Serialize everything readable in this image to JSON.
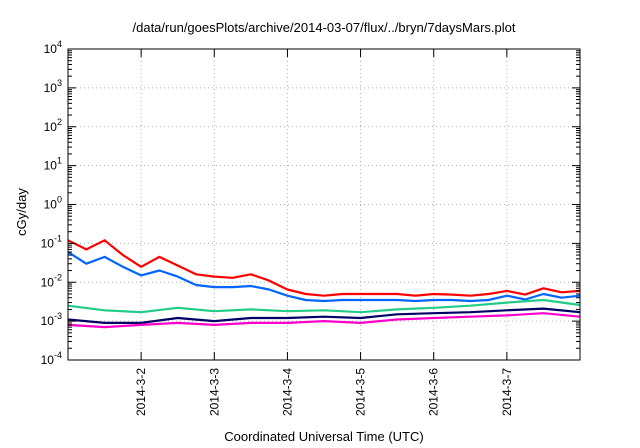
{
  "chart_data": {
    "type": "line",
    "title": "/data/run/goesPlots/archive/2014-03-07/flux/../bryn/7daysMars.plot",
    "xlabel": "Coordinated Universal Time (UTC)",
    "ylabel": "cGy/day",
    "y_scale": "log",
    "ylim": [
      0.0001,
      10000
    ],
    "y_ticks": [
      {
        "value": 0.0001,
        "base": "10",
        "exp": "-4"
      },
      {
        "value": 0.001,
        "base": "10",
        "exp": "-3"
      },
      {
        "value": 0.01,
        "base": "10",
        "exp": "-2"
      },
      {
        "value": 0.1,
        "base": "10",
        "exp": "-1"
      },
      {
        "value": 1,
        "base": "10",
        "exp": "0"
      },
      {
        "value": 10,
        "base": "10",
        "exp": "1"
      },
      {
        "value": 100,
        "base": "10",
        "exp": "2"
      },
      {
        "value": 1000,
        "base": "10",
        "exp": "3"
      },
      {
        "value": 10000,
        "base": "10",
        "exp": "4"
      }
    ],
    "xlim": [
      "2014-03-01 00:00",
      "2014-03-08 00:00"
    ],
    "x_ticks": [
      {
        "date": "2014-03-02 00:00",
        "label": "2014-3-2"
      },
      {
        "date": "2014-03-03 00:00",
        "label": "2014-3-3"
      },
      {
        "date": "2014-03-04 00:00",
        "label": "2014-3-4"
      },
      {
        "date": "2014-03-05 00:00",
        "label": "2014-3-5"
      },
      {
        "date": "2014-03-06 00:00",
        "label": "2014-3-6"
      },
      {
        "date": "2014-03-07 00:00",
        "label": "2014-3-7"
      }
    ],
    "grid": true,
    "series": [
      {
        "color": "#ff0000",
        "x": [
          "2014-03-01 00:00",
          "2014-03-01 06:00",
          "2014-03-01 12:00",
          "2014-03-01 18:00",
          "2014-03-02 00:00",
          "2014-03-02 06:00",
          "2014-03-02 12:00",
          "2014-03-02 18:00",
          "2014-03-03 00:00",
          "2014-03-03 06:00",
          "2014-03-03 12:00",
          "2014-03-03 18:00",
          "2014-03-04 00:00",
          "2014-03-04 06:00",
          "2014-03-04 12:00",
          "2014-03-04 18:00",
          "2014-03-05 00:00",
          "2014-03-05 06:00",
          "2014-03-05 12:00",
          "2014-03-05 18:00",
          "2014-03-06 00:00",
          "2014-03-06 06:00",
          "2014-03-06 12:00",
          "2014-03-06 18:00",
          "2014-03-07 00:00",
          "2014-03-07 06:00",
          "2014-03-07 12:00",
          "2014-03-07 18:00",
          "2014-03-08 00:00"
        ],
        "values": [
          0.12,
          0.07,
          0.12,
          0.05,
          0.025,
          0.045,
          0.027,
          0.016,
          0.014,
          0.013,
          0.016,
          0.011,
          0.0065,
          0.005,
          0.0045,
          0.005,
          0.005,
          0.005,
          0.005,
          0.0045,
          0.005,
          0.0048,
          0.0045,
          0.005,
          0.006,
          0.0048,
          0.007,
          0.0055,
          0.006
        ]
      },
      {
        "color": "#0066ff",
        "x": [
          "2014-03-01 00:00",
          "2014-03-01 06:00",
          "2014-03-01 12:00",
          "2014-03-01 18:00",
          "2014-03-02 00:00",
          "2014-03-02 06:00",
          "2014-03-02 12:00",
          "2014-03-02 18:00",
          "2014-03-03 00:00",
          "2014-03-03 06:00",
          "2014-03-03 12:00",
          "2014-03-03 18:00",
          "2014-03-04 00:00",
          "2014-03-04 06:00",
          "2014-03-04 12:00",
          "2014-03-04 18:00",
          "2014-03-05 00:00",
          "2014-03-05 06:00",
          "2014-03-05 12:00",
          "2014-03-05 18:00",
          "2014-03-06 00:00",
          "2014-03-06 06:00",
          "2014-03-06 12:00",
          "2014-03-06 18:00",
          "2014-03-07 00:00",
          "2014-03-07 06:00",
          "2014-03-07 12:00",
          "2014-03-07 18:00",
          "2014-03-08 00:00"
        ],
        "values": [
          0.06,
          0.03,
          0.045,
          0.025,
          0.015,
          0.02,
          0.014,
          0.0085,
          0.0075,
          0.0075,
          0.008,
          0.0065,
          0.0045,
          0.0035,
          0.0033,
          0.0035,
          0.0035,
          0.0035,
          0.0035,
          0.0033,
          0.0035,
          0.0035,
          0.0033,
          0.0035,
          0.0045,
          0.0036,
          0.005,
          0.004,
          0.0045
        ]
      },
      {
        "color": "#22cc88",
        "x": [
          "2014-03-01 00:00",
          "2014-03-01 12:00",
          "2014-03-02 00:00",
          "2014-03-02 12:00",
          "2014-03-03 00:00",
          "2014-03-03 12:00",
          "2014-03-04 00:00",
          "2014-03-04 12:00",
          "2014-03-05 00:00",
          "2014-03-05 12:00",
          "2014-03-06 00:00",
          "2014-03-06 12:00",
          "2014-03-07 00:00",
          "2014-03-07 12:00",
          "2014-03-08 00:00"
        ],
        "values": [
          0.0025,
          0.0019,
          0.0017,
          0.0022,
          0.0018,
          0.002,
          0.0018,
          0.0019,
          0.0017,
          0.002,
          0.0022,
          0.0025,
          0.003,
          0.0035,
          0.0026
        ]
      },
      {
        "color": "#000066",
        "x": [
          "2014-03-01 00:00",
          "2014-03-01 12:00",
          "2014-03-02 00:00",
          "2014-03-02 12:00",
          "2014-03-03 00:00",
          "2014-03-03 12:00",
          "2014-03-04 00:00",
          "2014-03-04 12:00",
          "2014-03-05 00:00",
          "2014-03-05 12:00",
          "2014-03-06 00:00",
          "2014-03-06 12:00",
          "2014-03-07 00:00",
          "2014-03-07 12:00",
          "2014-03-08 00:00"
        ],
        "values": [
          0.0011,
          0.0009,
          0.0009,
          0.0012,
          0.001,
          0.0012,
          0.0012,
          0.0013,
          0.0012,
          0.0015,
          0.0016,
          0.0017,
          0.0019,
          0.0021,
          0.0017
        ]
      },
      {
        "color": "#ff00cc",
        "x": [
          "2014-03-01 00:00",
          "2014-03-01 12:00",
          "2014-03-02 00:00",
          "2014-03-02 12:00",
          "2014-03-03 00:00",
          "2014-03-03 12:00",
          "2014-03-04 00:00",
          "2014-03-04 12:00",
          "2014-03-05 00:00",
          "2014-03-05 12:00",
          "2014-03-06 00:00",
          "2014-03-06 12:00",
          "2014-03-07 00:00",
          "2014-03-07 12:00",
          "2014-03-08 00:00"
        ],
        "values": [
          0.0008,
          0.0007,
          0.0008,
          0.0009,
          0.0008,
          0.0009,
          0.0009,
          0.001,
          0.0009,
          0.0011,
          0.0012,
          0.0013,
          0.0014,
          0.0016,
          0.0013
        ]
      }
    ]
  }
}
